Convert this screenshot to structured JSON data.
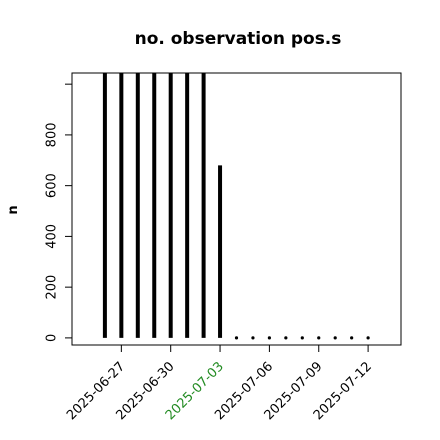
{
  "chart_data": {
    "type": "vline",
    "title": "no. observation pos.s",
    "y_label": "n",
    "x": [
      "2025-06-26",
      "2025-06-27",
      "2025-06-28",
      "2025-06-29",
      "2025-06-30",
      "2025-07-01",
      "2025-07-02",
      "2025-07-03",
      "2025-07-04",
      "2025-07-05",
      "2025-07-06",
      "2025-07-07",
      "2025-07-08",
      "2025-07-09",
      "2025-07-10",
      "2025-07-11",
      "2025-07-12"
    ],
    "values": [
      1044,
      1044,
      1044,
      1044,
      1044,
      1044,
      1044,
      680,
      0,
      0,
      0,
      0,
      0,
      0,
      0,
      0,
      0
    ],
    "color": "#000000",
    "xlim": [
      "2025-06-24",
      "2025-07-14"
    ],
    "xticks": [
      "2025-06-27",
      "2025-06-30",
      "2025-07-03",
      "2025-07-06",
      "2025-07-09",
      "2025-07-12"
    ],
    "xtick_colors": [
      "#000000",
      "#000000",
      "#228b22",
      "#000000",
      "#000000",
      "#000000"
    ],
    "ylim": [
      -28,
      1044
    ],
    "yticks": [
      0,
      200,
      400,
      600,
      800,
      {
        "value": 1000,
        "label": null
      }
    ]
  }
}
